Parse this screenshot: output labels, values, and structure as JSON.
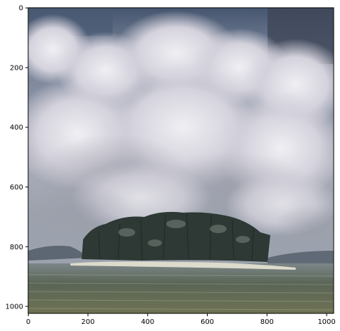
{
  "figure": {
    "image_description_icon": "cloudy-sky-island-photo",
    "x_axis": {
      "ticks": [
        "0",
        "200",
        "400",
        "600",
        "800",
        "1000"
      ],
      "tick_values": [
        0,
        200,
        400,
        600,
        800,
        1000
      ],
      "range": [
        0,
        1024
      ]
    },
    "y_axis": {
      "ticks": [
        "0",
        "200",
        "400",
        "600",
        "800",
        "1000"
      ],
      "tick_values": [
        0,
        200,
        400,
        600,
        800,
        1000
      ],
      "range": [
        0,
        1024
      ],
      "inverted": true
    }
  },
  "colors": {
    "sky_dark": "#3a4150",
    "sky_blue": "#4f6b96",
    "cloud_light": "#e6e4ea",
    "cloud_mid": "#b9b8c4",
    "cloud_shadow": "#8a8e98",
    "hills": "#5d6673",
    "trees": "#2e3834",
    "beach": "#d9d8c8",
    "sea": "#4e5a4d",
    "sea_light": "#8a8f78"
  }
}
